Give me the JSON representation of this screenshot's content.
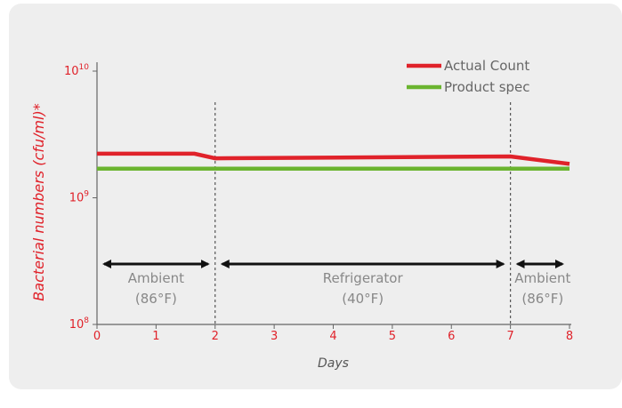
{
  "chart_data": {
    "type": "line",
    "title": "",
    "xlabel": "Days",
    "ylabel": "Bacterial numbers (cfu/ml)*",
    "y_scale": "log",
    "xlim": [
      0,
      8
    ],
    "ylim": [
      100000000,
      10000000000
    ],
    "x_ticks": [
      "0",
      "1",
      "2",
      "3",
      "4",
      "5",
      "6",
      "7",
      "8"
    ],
    "y_ticks": [
      {
        "base": "10",
        "exp": "8"
      },
      {
        "base": "10",
        "exp": "9"
      },
      {
        "base": "10",
        "exp": "10"
      }
    ],
    "series": [
      {
        "name": "Actual Count",
        "color": "#e0222a",
        "points": [
          [
            0,
            2230000000
          ],
          [
            1.65,
            2230000000
          ],
          [
            2,
            2050000000
          ],
          [
            7,
            2120000000
          ],
          [
            8,
            1850000000
          ]
        ]
      },
      {
        "name": "Product spec",
        "color": "#6ab42f",
        "points": [
          [
            0,
            1700000000
          ],
          [
            8,
            1700000000
          ]
        ]
      }
    ],
    "dividers": [
      2,
      7
    ],
    "phases": [
      {
        "from": 0,
        "to": 2,
        "name": "Ambient",
        "temp": "(86°F)"
      },
      {
        "from": 2,
        "to": 7,
        "name": "Refrigerator",
        "temp": "(40°F)"
      },
      {
        "from": 7,
        "to": 8,
        "name": "Ambient",
        "temp": "(86°F)"
      }
    ],
    "grid": false,
    "legend_position": "top-right"
  }
}
